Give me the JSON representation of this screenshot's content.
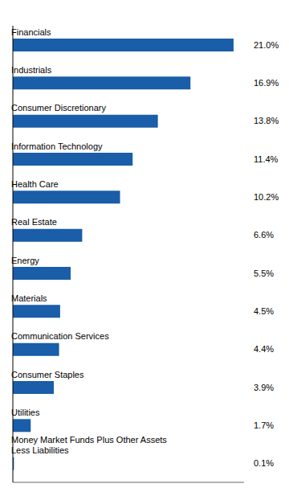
{
  "chart_data": {
    "type": "bar",
    "orientation": "horizontal",
    "categories": [
      "Financials",
      "Industrials",
      "Consumer Discretionary",
      "Information Technology",
      "Health Care",
      "Real Estate",
      "Energy",
      "Materials",
      "Communication Services",
      "Consumer Staples",
      "Utilities",
      "Money Market Funds Plus Other Assets\nLess Liabilities"
    ],
    "values": [
      21.0,
      16.9,
      13.8,
      11.4,
      10.2,
      6.6,
      5.5,
      4.5,
      4.4,
      3.9,
      1.7,
      0.1
    ],
    "value_labels": [
      "21.0%",
      "16.9%",
      "13.8%",
      "11.4%",
      "10.2%",
      "6.6%",
      "5.5%",
      "4.5%",
      "4.4%",
      "3.9%",
      "1.7%",
      "0.1%"
    ],
    "color": "#1A5DA8",
    "xlim": [
      0,
      22
    ],
    "grid": false,
    "data_labels": true,
    "tick_labels": false
  }
}
